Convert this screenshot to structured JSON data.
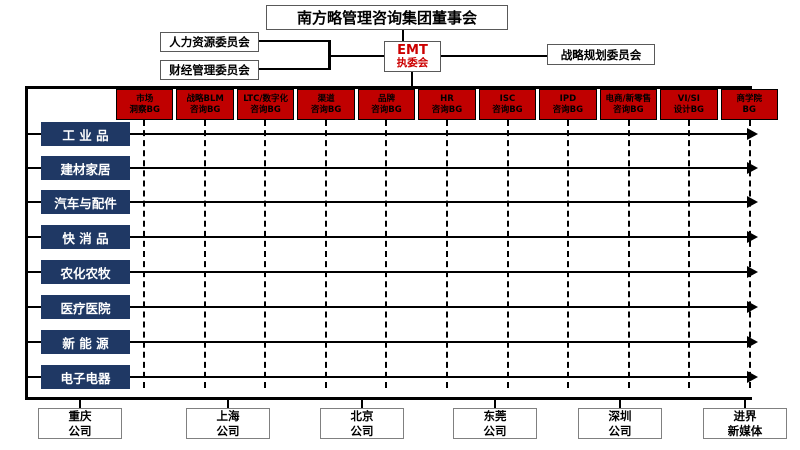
{
  "title": {
    "board": "南方略管理咨询集团董事会"
  },
  "header": {
    "committees_left": [
      {
        "label": "人力资源委员会"
      },
      {
        "label": "财经管理委员会"
      }
    ],
    "emt": {
      "line1": "EMT",
      "line2": "执委会"
    },
    "committee_right": {
      "label": "战略规划委员会"
    }
  },
  "bg_units": [
    {
      "line1": "市场",
      "line2": "洞察BG"
    },
    {
      "line1": "战略BLM",
      "line2": "咨询BG"
    },
    {
      "line1": "LTC/数字化",
      "line2": "咨询BG"
    },
    {
      "line1": "渠道",
      "line2": "咨询BG"
    },
    {
      "line1": "品牌",
      "line2": "咨询BG"
    },
    {
      "line1": "HR",
      "line2": "咨询BG"
    },
    {
      "line1": "ISC",
      "line2": "咨询BG"
    },
    {
      "line1": "IPD",
      "line2": "咨询BG"
    },
    {
      "line1": "电商/新零售",
      "line2": "咨询BG"
    },
    {
      "line1": "VI/SI",
      "line2": "设计BG"
    },
    {
      "line1": "商学院",
      "line2": "BG"
    }
  ],
  "industry_rows": [
    {
      "label": "工 业 品"
    },
    {
      "label": "建材家居"
    },
    {
      "label": "汽车与配件"
    },
    {
      "label": "快 消 品"
    },
    {
      "label": "农化农牧"
    },
    {
      "label": "医疗医院"
    },
    {
      "label": "新 能 源"
    },
    {
      "label": "电子电器"
    }
  ],
  "companies": [
    {
      "line1": "重庆",
      "line2": "公司"
    },
    {
      "line1": "上海",
      "line2": "公司"
    },
    {
      "line1": "北京",
      "line2": "公司"
    },
    {
      "line1": "东莞",
      "line2": "公司"
    },
    {
      "line1": "深圳",
      "line2": "公司"
    },
    {
      "line1": "进界",
      "line2": "新媒体"
    }
  ],
  "colors": {
    "bg_unit_fill": "#C00000",
    "industry_fill": "#1F3864",
    "emt_text": "#CC0000",
    "line_color": "#000000"
  }
}
